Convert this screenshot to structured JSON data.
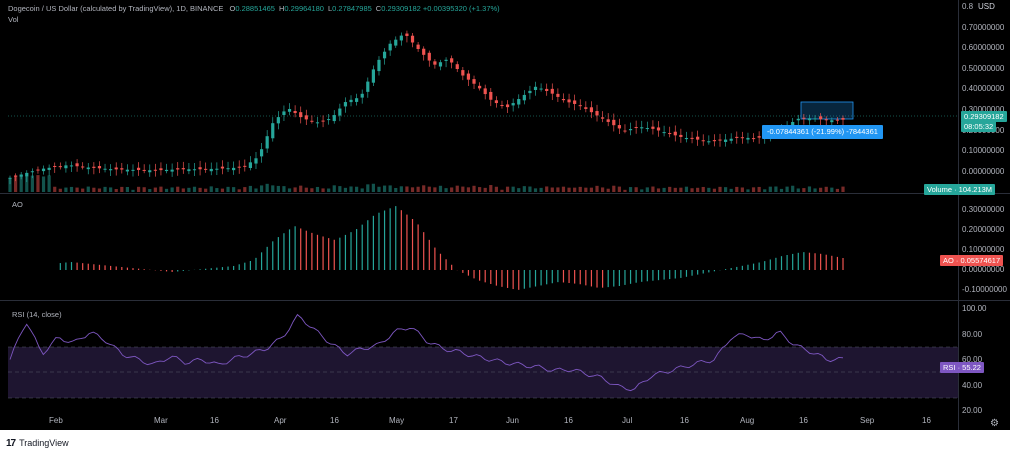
{
  "header": {
    "symbol": "Dogecoin / US Dollar (calculated by TradingView), 1D, BINANCE",
    "ohlc": [
      {
        "k": "O",
        "v": "0.28851465"
      },
      {
        "k": "H",
        "v": "0.29964180"
      },
      {
        "k": "L",
        "v": "0.27847985"
      },
      {
        "k": "C",
        "v": "0.29309182"
      }
    ],
    "change": "+0.00395320 (+1.37%)",
    "vol_label": "Vol"
  },
  "price_axis": {
    "currency": "USD",
    "ticks": [
      "0.8",
      "0.70000000",
      "0.60000000",
      "0.50000000",
      "0.40000000",
      "0.30000000",
      "0.20000000",
      "0.10000000",
      "0.00000000"
    ],
    "last_price": "0.29309182",
    "countdown": "08:05:32",
    "volume_badge": "Volume · 104.213M"
  },
  "measure": {
    "label": "-0.07844361 (-21.99%) -7844361"
  },
  "ao": {
    "label": "AO",
    "ticks": [
      "0.30000000",
      "0.20000000",
      "0.10000000",
      "0.00000000",
      "-0.10000000"
    ],
    "badge": "AO · 0.05574617"
  },
  "rsi": {
    "label": "RSI (14, close)",
    "ticks": [
      "100.00",
      "80.00",
      "60.00",
      "40.00",
      "20.00"
    ],
    "badge": "RSI · 55.22"
  },
  "time_axis": [
    "Feb",
    "Mar",
    "16",
    "Apr",
    "16",
    "May",
    "17",
    "Jun",
    "16",
    "Jul",
    "16",
    "Aug",
    "16",
    "Sep",
    "16"
  ],
  "footer": {
    "brand": "TradingView"
  },
  "colors": {
    "up": "#26a69a",
    "down": "#ef5350",
    "rsi": "#7e57c2",
    "measure": "#2196f3"
  },
  "icons": [
    "gear-icon",
    "tradingview-logo-icon"
  ],
  "chart_data": {
    "type": "candlestick",
    "y_range": [
      0,
      0.8
    ],
    "price_path": [
      0.02,
      0.04,
      0.06,
      0.07,
      0.08,
      0.07,
      0.065,
      0.06,
      0.058,
      0.056,
      0.055,
      0.058,
      0.06,
      0.06,
      0.062,
      0.065,
      0.07,
      0.12,
      0.28,
      0.35,
      0.3,
      0.28,
      0.3,
      0.38,
      0.4,
      0.55,
      0.65,
      0.7,
      0.62,
      0.55,
      0.58,
      0.5,
      0.45,
      0.38,
      0.35,
      0.4,
      0.45,
      0.42,
      0.38,
      0.36,
      0.32,
      0.28,
      0.24,
      0.26,
      0.25,
      0.23,
      0.21,
      0.2,
      0.19,
      0.2,
      0.21,
      0.205,
      0.22,
      0.26,
      0.3,
      0.3,
      0.29,
      0.293
    ],
    "ao_path": [
      0,
      0.02,
      0.03,
      0.04,
      0.03,
      0.02,
      0.01,
      0.0,
      -0.01,
      0.0,
      0.01,
      0.02,
      0.05,
      0.15,
      0.22,
      0.18,
      0.15,
      0.2,
      0.28,
      0.32,
      0.24,
      0.1,
      0.0,
      -0.05,
      -0.08,
      -0.1,
      -0.08,
      -0.06,
      -0.07,
      -0.09,
      -0.08,
      -0.06,
      -0.05,
      -0.04,
      -0.02,
      0.0,
      0.02,
      0.04,
      0.07,
      0.09,
      0.08,
      0.06
    ],
    "rsi_path": [
      55,
      90,
      60,
      75,
      70,
      80,
      72,
      60,
      55,
      50,
      58,
      52,
      55,
      50,
      56,
      60,
      65,
      75,
      95,
      82,
      70,
      60,
      65,
      68,
      80,
      85,
      72,
      65,
      62,
      58,
      55,
      52,
      50,
      48,
      45,
      46,
      42,
      38,
      30,
      28,
      40,
      44,
      48,
      52,
      55,
      75,
      78,
      72,
      80,
      68,
      62,
      55,
      55.22
    ]
  }
}
